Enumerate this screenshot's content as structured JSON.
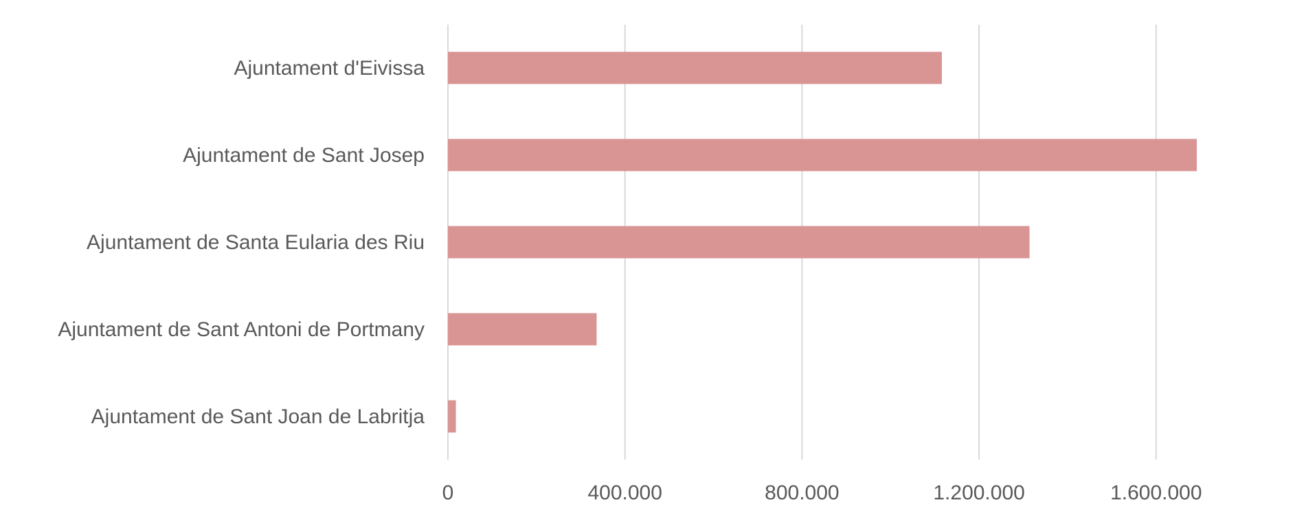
{
  "chart_data": {
    "type": "bar",
    "orientation": "horizontal",
    "title": "",
    "xlabel": "",
    "ylabel": "",
    "categories": [
      "Ajuntament d'Eivissa",
      "Ajuntament de Sant Josep",
      "Ajuntament de Santa Eularia des Riu",
      "Ajuntament de Sant Antoni de Portmany",
      "Ajuntament de Sant Joan de Labritja"
    ],
    "values": [
      1116000,
      1692000,
      1314000,
      336000,
      18000
    ],
    "xlim": [
      0,
      1800000
    ],
    "x_ticks": [
      0,
      400000,
      800000,
      1200000,
      1600000
    ],
    "x_tick_labels": [
      "0",
      "400.000",
      "800.000",
      "1.200.000",
      "1.600.000"
    ],
    "grid": true,
    "legend": "none",
    "bar_color": "#d99594",
    "grid_color": "#d9d9d9",
    "text_color": "#595959"
  }
}
